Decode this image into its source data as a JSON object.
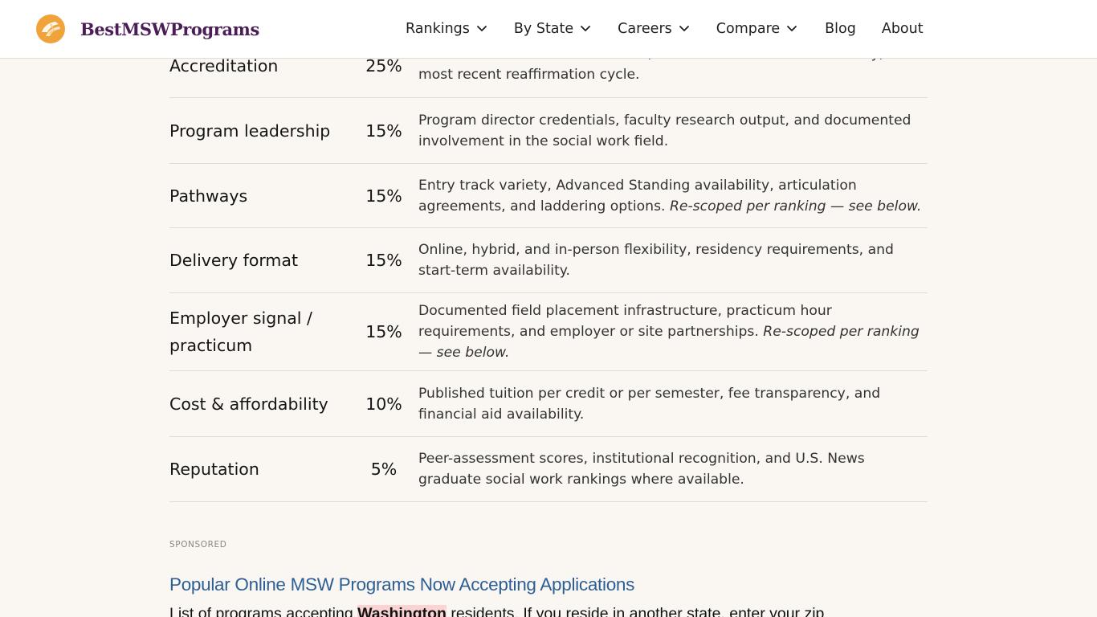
{
  "header": {
    "logo_text": "BestMSWPrograms",
    "nav": [
      {
        "label": "Rankings",
        "has_menu": true
      },
      {
        "label": "By State",
        "has_menu": true
      },
      {
        "label": "Careers",
        "has_menu": true
      },
      {
        "label": "Compare",
        "has_menu": true
      },
      {
        "label": "Blog",
        "has_menu": false
      },
      {
        "label": "About",
        "has_menu": false
      }
    ]
  },
  "criteria_table": {
    "rows": [
      {
        "factor": "Accreditation",
        "weight": "25%",
        "description": "Active CSWE accreditation status, continuous accreditation history, and most recent reaffirmation cycle.",
        "note": ""
      },
      {
        "factor": "Program leadership",
        "weight": "15%",
        "description": "Program director credentials, faculty research output, and documented involvement in the social work field.",
        "note": ""
      },
      {
        "factor": "Pathways",
        "weight": "15%",
        "description": "Entry track variety, Advanced Standing availability, articulation agreements, and laddering options.",
        "note": "Re-scoped per ranking — see below."
      },
      {
        "factor": "Delivery format",
        "weight": "15%",
        "description": "Online, hybrid, and in-person flexibility, residency requirements, and start-term availability.",
        "note": ""
      },
      {
        "factor": "Employer signal / practicum",
        "weight": "15%",
        "description": "Documented field placement infrastructure, practicum hour requirements, and employer or site partnerships.",
        "note": "Re-scoped per ranking — see below."
      },
      {
        "factor": "Cost & affordability",
        "weight": "10%",
        "description": "Published tuition per credit or per semester, fee transparency, and financial aid availability.",
        "note": ""
      },
      {
        "factor": "Reputation",
        "weight": "5%",
        "description": "Peer-assessment scores, institutional recognition, and U.S. News graduate social work rankings where available.",
        "note": ""
      }
    ]
  },
  "sponsored": {
    "label": "SPONSORED",
    "title": "Popular Online MSW Programs Now Accepting Applications",
    "body_prefix": "List of programs accepting ",
    "body_state": "Washington",
    "body_suffix": " residents. If you reside in another state, enter your zip"
  },
  "colors": {
    "background": "#faf6f1",
    "logo_text": "#4b1d57",
    "logo_mark": "#f0a33a",
    "ad_title": "#2c5f96",
    "highlight": "#fbd3d3"
  }
}
